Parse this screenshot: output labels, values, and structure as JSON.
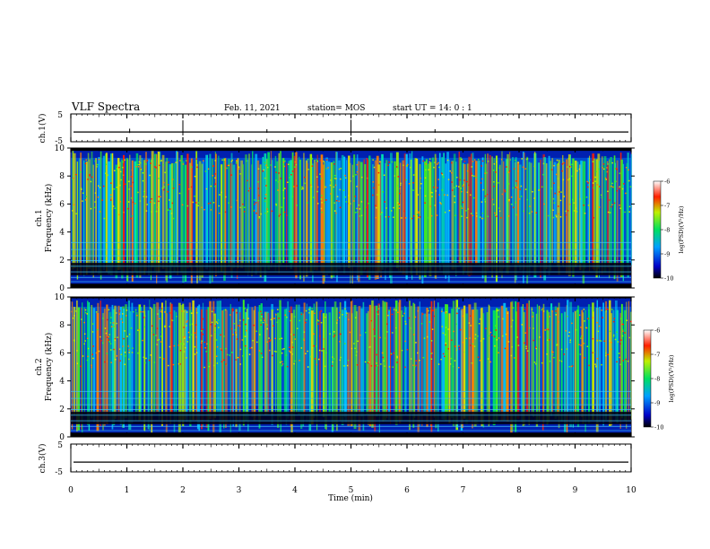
{
  "header": {
    "title": "VLF Spectra",
    "date": "Feb. 11, 2021",
    "station": "station= MOS",
    "start": "start  UT =   14: 0  : 1"
  },
  "chart_data": [
    {
      "id": "ch1-waveform",
      "type": "line",
      "ylabel": "ch.1(V)",
      "ylim": [
        -5,
        5
      ],
      "yticks": [
        5,
        -5
      ],
      "xlim": [
        0,
        10
      ],
      "baseline": -1.5
    },
    {
      "id": "ch1-spectrogram",
      "type": "heatmap",
      "ylabel_lines": [
        "ch.1",
        "Frequency (kHz)"
      ],
      "ylim": [
        0,
        10
      ],
      "yticks": [
        0,
        2,
        4,
        6,
        8,
        10
      ],
      "xlim": [
        0,
        10
      ],
      "colorbar": {
        "label": "log(PSD)(V²/Hz)",
        "range": [
          -10,
          -6
        ],
        "ticks": [
          -6,
          -7,
          -8,
          -9,
          -10
        ]
      },
      "band_khz": [
        0.3,
        9.8
      ],
      "gap_khz": [
        0.9,
        1.8
      ]
    },
    {
      "id": "ch2-spectrogram",
      "type": "heatmap",
      "ylabel_lines": [
        "ch.2",
        "Frequency (kHz)"
      ],
      "ylim": [
        0,
        10
      ],
      "yticks": [
        0,
        2,
        4,
        6,
        8,
        10
      ],
      "xlim": [
        0,
        10
      ],
      "colorbar": {
        "label": "log(PSD)(V²/Hz)",
        "range": [
          -10,
          -6
        ],
        "ticks": [
          -6,
          -7,
          -8,
          -9,
          -10
        ]
      },
      "band_khz": [
        0.3,
        9.9
      ],
      "gap_khz": [
        0.9,
        1.8
      ]
    },
    {
      "id": "ch3-waveform",
      "type": "line",
      "ylabel": "ch.3(V)",
      "ylim": [
        -5,
        5
      ],
      "yticks": [
        5,
        -5
      ],
      "xlim": [
        0,
        10
      ],
      "baseline": -1.5,
      "xlabel": "Time (min)",
      "xticks": [
        0,
        1,
        2,
        3,
        4,
        5,
        6,
        7,
        8,
        9,
        10
      ]
    }
  ]
}
